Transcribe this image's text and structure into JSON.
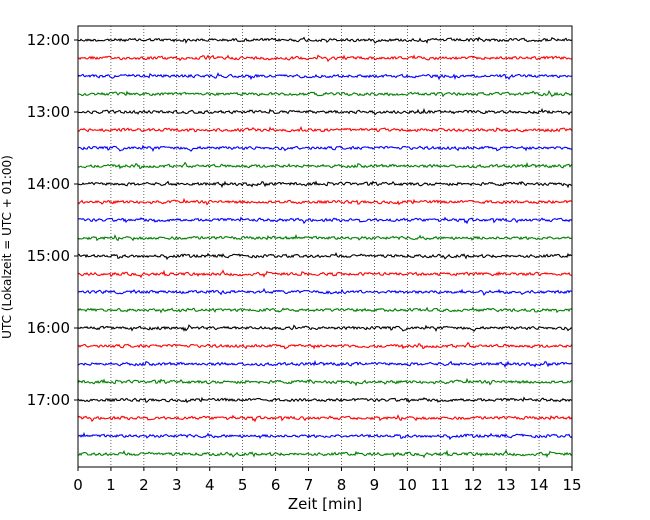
{
  "chart_data": {
    "type": "line",
    "xlabel": "Zeit  [min]",
    "ylabel": "UTC (Lokalzeit = UTC + 01:00)",
    "xlim": [
      0,
      15
    ],
    "x_ticks": [
      "0",
      "1",
      "2",
      "3",
      "4",
      "5",
      "6",
      "7",
      "8",
      "9",
      "10",
      "11",
      "12",
      "13",
      "14",
      "15"
    ],
    "y_tick_labels": [
      "12:00",
      "13:00",
      "14:00",
      "15:00",
      "16:00",
      "17:00"
    ],
    "grid": "vertical-dotted",
    "trace_interval_min": 15,
    "start_time": "12:00",
    "trace_colors": [
      "#000000",
      "#ff0000",
      "#0000ff",
      "#008000"
    ],
    "trace_count": 24
  }
}
